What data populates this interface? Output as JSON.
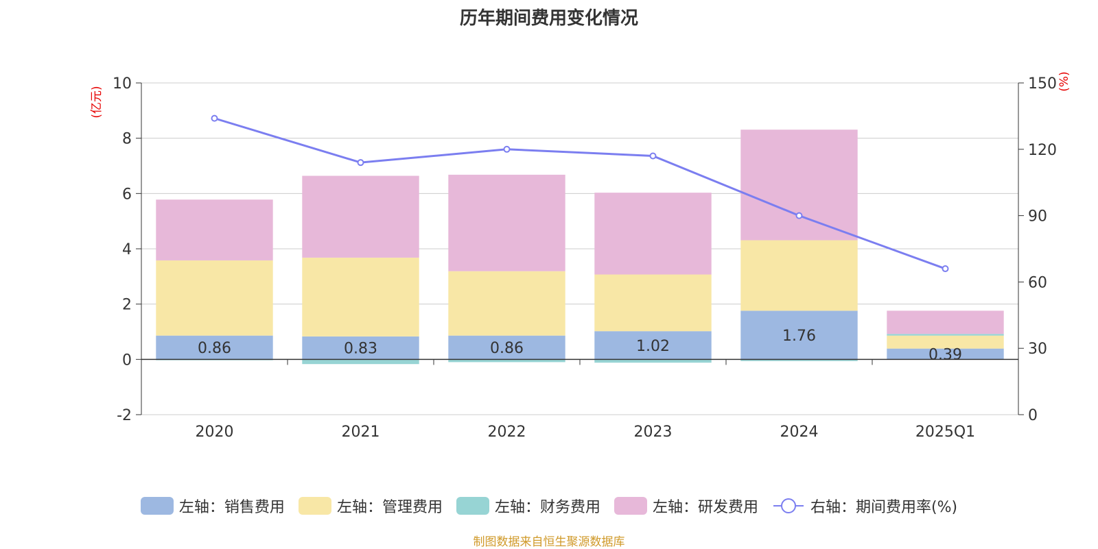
{
  "chart_data": {
    "type": "bar",
    "title": "历年期间费用变化情况",
    "categories": [
      "2020",
      "2021",
      "2022",
      "2023",
      "2024",
      "2025Q1"
    ],
    "left_axis": {
      "unit_label": "(亿元)",
      "ylim": [
        -2,
        10
      ],
      "ticks": [
        -2,
        0,
        2,
        4,
        6,
        8,
        10
      ]
    },
    "right_axis": {
      "unit_label": "(%)",
      "ylim": [
        0,
        150
      ],
      "ticks": [
        0,
        30,
        60,
        90,
        120,
        150
      ]
    },
    "stacked": true,
    "series": [
      {
        "name": "左轴：销售费用",
        "axis": "left",
        "type": "bar",
        "color": "#9db8e1",
        "values": [
          0.86,
          0.83,
          0.86,
          1.02,
          1.76,
          0.39
        ],
        "show_labels": true
      },
      {
        "name": "左轴：管理费用",
        "axis": "left",
        "type": "bar",
        "color": "#f8e7a6",
        "values": [
          2.72,
          2.85,
          2.33,
          2.05,
          2.55,
          0.47
        ]
      },
      {
        "name": "左轴：财务费用",
        "axis": "left",
        "type": "bar",
        "color": "#97d4d4",
        "values": [
          -0.03,
          -0.17,
          -0.1,
          -0.12,
          -0.06,
          0.06
        ]
      },
      {
        "name": "左轴：研发费用",
        "axis": "left",
        "type": "bar",
        "color": "#e7b8d9",
        "values": [
          2.2,
          2.96,
          3.49,
          2.96,
          4.0,
          0.84
        ]
      },
      {
        "name": "右轴：期间费用率(%)",
        "axis": "right",
        "type": "line",
        "color": "#7b7ef0",
        "values": [
          134,
          114,
          120,
          117,
          90,
          66
        ]
      }
    ],
    "grid": true,
    "legend_position": "bottom"
  },
  "source": "制图数据来自恒生聚源数据库"
}
